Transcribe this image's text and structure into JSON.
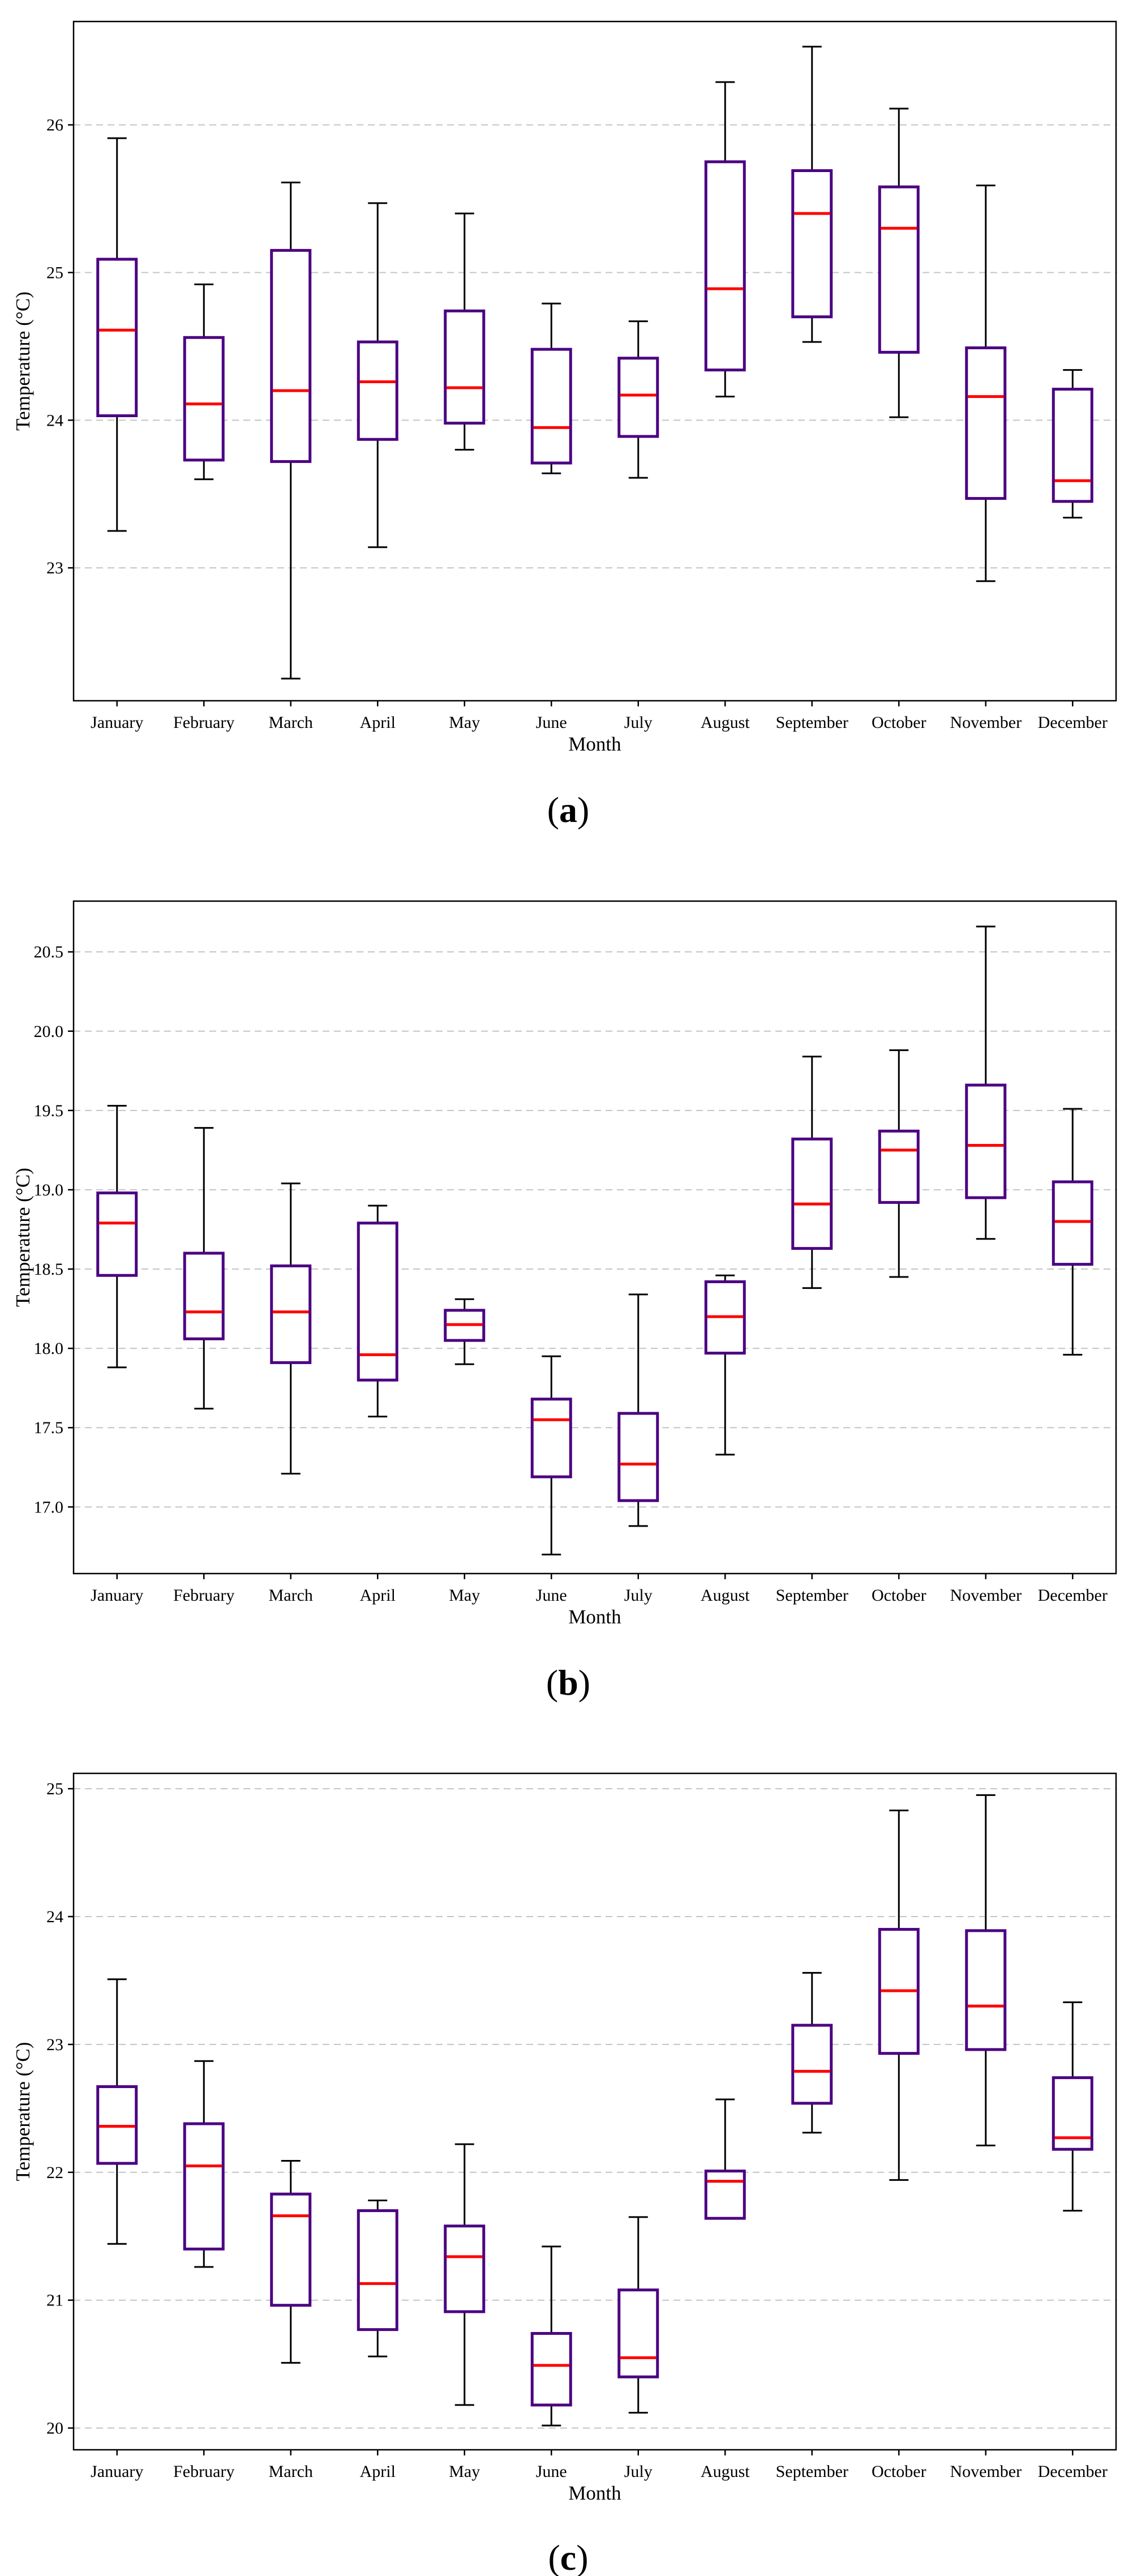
{
  "figure": {
    "colors": {
      "box": "#4b0082",
      "median": "#ff0000",
      "whisker": "#000000",
      "grid": "#c4c4c4"
    }
  },
  "chart_data": [
    {
      "type": "box",
      "caption_letter": "a",
      "xlabel": "Month",
      "ylabel": "Temperature (°C)",
      "ylim": [
        22.1,
        26.7
      ],
      "yticks": [
        23,
        24,
        25,
        26
      ],
      "categories": [
        "January",
        "February",
        "March",
        "April",
        "May",
        "June",
        "July",
        "August",
        "September",
        "October",
        "November",
        "December"
      ],
      "boxes": [
        {
          "min": 23.25,
          "q1": 24.03,
          "median": 24.61,
          "q3": 25.09,
          "max": 25.91
        },
        {
          "min": 23.6,
          "q1": 23.73,
          "median": 24.11,
          "q3": 24.56,
          "max": 24.92
        },
        {
          "min": 22.25,
          "q1": 23.72,
          "median": 24.2,
          "q3": 25.15,
          "max": 25.61
        },
        {
          "min": 23.14,
          "q1": 23.87,
          "median": 24.26,
          "q3": 24.53,
          "max": 25.47
        },
        {
          "min": 23.8,
          "q1": 23.98,
          "median": 24.22,
          "q3": 24.74,
          "max": 25.4
        },
        {
          "min": 23.64,
          "q1": 23.71,
          "median": 23.95,
          "q3": 24.48,
          "max": 24.79
        },
        {
          "min": 23.61,
          "q1": 23.89,
          "median": 24.17,
          "q3": 24.42,
          "max": 24.67
        },
        {
          "min": 24.16,
          "q1": 24.34,
          "median": 24.89,
          "q3": 25.75,
          "max": 26.29
        },
        {
          "min": 24.53,
          "q1": 24.7,
          "median": 25.4,
          "q3": 25.69,
          "max": 26.53
        },
        {
          "min": 24.02,
          "q1": 24.46,
          "median": 25.3,
          "q3": 25.58,
          "max": 26.11
        },
        {
          "min": 22.91,
          "q1": 23.47,
          "median": 24.16,
          "q3": 24.49,
          "max": 25.59
        },
        {
          "min": 23.34,
          "q1": 23.45,
          "median": 23.59,
          "q3": 24.21,
          "max": 24.34
        }
      ]
    },
    {
      "type": "box",
      "caption_letter": "b",
      "xlabel": "Month",
      "ylabel": "Temperature (°C)",
      "ylim": [
        16.58,
        20.82
      ],
      "yticks": [
        17.0,
        17.5,
        18.0,
        18.5,
        19.0,
        19.5,
        20.0,
        20.5
      ],
      "ytick_labels": [
        "17.0",
        "17.5",
        "18.0",
        "18.5",
        "19.0",
        "19.5",
        "20.0",
        "20.5"
      ],
      "categories": [
        "January",
        "February",
        "March",
        "April",
        "May",
        "June",
        "July",
        "August",
        "September",
        "October",
        "November",
        "December"
      ],
      "boxes": [
        {
          "min": 17.88,
          "q1": 18.46,
          "median": 18.79,
          "q3": 18.98,
          "max": 19.53
        },
        {
          "min": 17.62,
          "q1": 18.06,
          "median": 18.23,
          "q3": 18.6,
          "max": 19.39
        },
        {
          "min": 17.21,
          "q1": 17.91,
          "median": 18.23,
          "q3": 18.52,
          "max": 19.04
        },
        {
          "min": 17.57,
          "q1": 17.8,
          "median": 17.96,
          "q3": 18.79,
          "max": 18.9
        },
        {
          "min": 17.9,
          "q1": 18.05,
          "median": 18.15,
          "q3": 18.24,
          "max": 18.31
        },
        {
          "min": 16.7,
          "q1": 17.19,
          "median": 17.55,
          "q3": 17.68,
          "max": 17.95
        },
        {
          "min": 16.88,
          "q1": 17.04,
          "median": 17.27,
          "q3": 17.59,
          "max": 18.34
        },
        {
          "min": 17.33,
          "q1": 17.97,
          "median": 18.2,
          "q3": 18.42,
          "max": 18.46
        },
        {
          "min": 18.38,
          "q1": 18.63,
          "median": 18.91,
          "q3": 19.32,
          "max": 19.84
        },
        {
          "min": 18.45,
          "q1": 18.92,
          "median": 19.25,
          "q3": 19.37,
          "max": 19.88
        },
        {
          "min": 18.69,
          "q1": 18.95,
          "median": 19.28,
          "q3": 19.66,
          "max": 20.66
        },
        {
          "min": 17.96,
          "q1": 18.53,
          "median": 18.8,
          "q3": 19.05,
          "max": 19.51
        }
      ]
    },
    {
      "type": "box",
      "caption_letter": "c",
      "xlabel": "Month",
      "ylabel": "Temperature (°C)",
      "ylim": [
        19.83,
        25.12
      ],
      "yticks": [
        20,
        21,
        22,
        23,
        24,
        25
      ],
      "categories": [
        "January",
        "February",
        "March",
        "April",
        "May",
        "June",
        "July",
        "August",
        "September",
        "October",
        "November",
        "December"
      ],
      "boxes": [
        {
          "min": 21.44,
          "q1": 22.07,
          "median": 22.36,
          "q3": 22.67,
          "max": 23.51
        },
        {
          "min": 21.26,
          "q1": 21.4,
          "median": 22.05,
          "q3": 22.38,
          "max": 22.87
        },
        {
          "min": 20.51,
          "q1": 20.96,
          "median": 21.66,
          "q3": 21.83,
          "max": 22.09
        },
        {
          "min": 20.56,
          "q1": 20.77,
          "median": 21.13,
          "q3": 21.7,
          "max": 21.78
        },
        {
          "min": 20.18,
          "q1": 20.91,
          "median": 21.34,
          "q3": 21.58,
          "max": 22.22
        },
        {
          "min": 20.02,
          "q1": 20.18,
          "median": 20.49,
          "q3": 20.74,
          "max": 21.42
        },
        {
          "min": 20.12,
          "q1": 20.4,
          "median": 20.55,
          "q3": 21.08,
          "max": 21.65
        },
        {
          "min": 21.64,
          "q1": 21.64,
          "median": 21.93,
          "q3": 22.01,
          "max": 22.57
        },
        {
          "min": 22.31,
          "q1": 22.54,
          "median": 22.79,
          "q3": 23.15,
          "max": 23.56
        },
        {
          "min": 21.94,
          "q1": 22.93,
          "median": 23.42,
          "q3": 23.9,
          "max": 24.83
        },
        {
          "min": 22.21,
          "q1": 22.96,
          "median": 23.3,
          "q3": 23.89,
          "max": 24.95
        },
        {
          "min": 21.7,
          "q1": 22.18,
          "median": 22.27,
          "q3": 22.74,
          "max": 23.33
        }
      ]
    }
  ]
}
